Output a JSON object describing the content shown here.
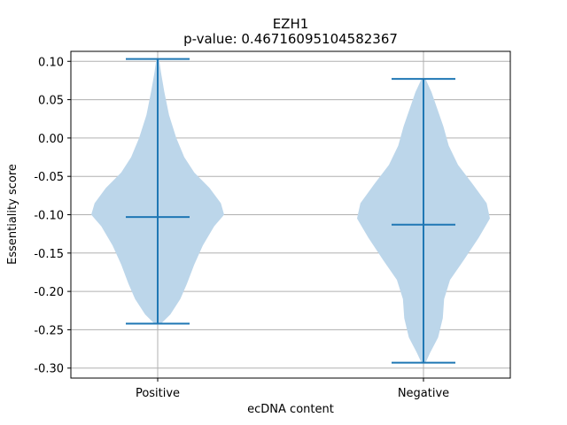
{
  "chart_data": {
    "type": "violin",
    "title": "EZH1",
    "subtitle": "p-value: 0.46716095104582367",
    "xlabel": "ecDNA content",
    "ylabel": "Essentiality score",
    "ylim": [
      -0.313,
      0.113
    ],
    "yticks": [
      "0.10",
      "0.05",
      "0.00",
      "-0.05",
      "-0.10",
      "-0.15",
      "-0.20",
      "-0.25",
      "-0.30"
    ],
    "ytick_values": [
      0.1,
      0.05,
      0.0,
      -0.05,
      -0.1,
      -0.15,
      -0.2,
      -0.25,
      -0.3
    ],
    "categories": [
      "Positive",
      "Negative"
    ],
    "grid": true,
    "colors": {
      "body": "#bcd6ea",
      "line": "#1f77b4",
      "grid": "#b0b0b0"
    },
    "violins": [
      {
        "category": "Positive",
        "max": 0.103,
        "median": -0.103,
        "min": -0.242,
        "profile": [
          [
            -0.242,
            0.05
          ],
          [
            -0.23,
            0.19
          ],
          [
            -0.21,
            0.34
          ],
          [
            -0.19,
            0.44
          ],
          [
            -0.165,
            0.55
          ],
          [
            -0.14,
            0.68
          ],
          [
            -0.115,
            0.85
          ],
          [
            -0.1,
            1.0
          ],
          [
            -0.085,
            0.95
          ],
          [
            -0.065,
            0.78
          ],
          [
            -0.045,
            0.55
          ],
          [
            -0.025,
            0.4
          ],
          [
            0.0,
            0.28
          ],
          [
            0.03,
            0.17
          ],
          [
            0.06,
            0.1
          ],
          [
            0.085,
            0.05
          ],
          [
            0.103,
            0.02
          ]
        ]
      },
      {
        "category": "Negative",
        "max": 0.077,
        "median": -0.113,
        "min": -0.293,
        "profile": [
          [
            -0.293,
            0.03
          ],
          [
            -0.28,
            0.1
          ],
          [
            -0.26,
            0.22
          ],
          [
            -0.235,
            0.29
          ],
          [
            -0.21,
            0.31
          ],
          [
            -0.185,
            0.4
          ],
          [
            -0.16,
            0.6
          ],
          [
            -0.13,
            0.83
          ],
          [
            -0.105,
            1.0
          ],
          [
            -0.085,
            0.95
          ],
          [
            -0.06,
            0.74
          ],
          [
            -0.035,
            0.52
          ],
          [
            -0.01,
            0.38
          ],
          [
            0.015,
            0.3
          ],
          [
            0.04,
            0.2
          ],
          [
            0.06,
            0.12
          ],
          [
            0.077,
            0.03
          ]
        ]
      }
    ]
  }
}
